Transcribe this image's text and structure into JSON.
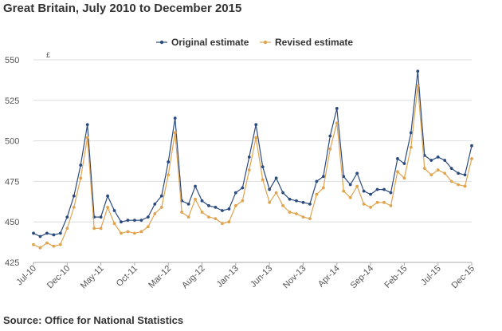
{
  "header": {
    "title": "Great Britain, July 2010 to December 2015"
  },
  "footer": {
    "source": "Source: Office for National Statistics"
  },
  "chart_data": {
    "type": "line",
    "title": "Great Britain, July 2010 to December 2015",
    "ylabel": "£",
    "ylim": [
      425,
      550
    ],
    "yticks": [
      425,
      450,
      475,
      500,
      525,
      550
    ],
    "grid": true,
    "legend": "top-center",
    "x_tick_labels": [
      "Jul-10",
      "Dec-10",
      "May-11",
      "Oct-11",
      "Mar-12",
      "Aug-12",
      "Jan-13",
      "Jun-13",
      "Nov-13",
      "Apr-14",
      "Sep-14",
      "Feb-15",
      "Jul-15",
      "Dec-15"
    ],
    "x": [
      "Jul-10",
      "Aug-10",
      "Sep-10",
      "Oct-10",
      "Nov-10",
      "Dec-10",
      "Jan-11",
      "Feb-11",
      "Mar-11",
      "Apr-11",
      "May-11",
      "Jun-11",
      "Jul-11",
      "Aug-11",
      "Sep-11",
      "Oct-11",
      "Nov-11",
      "Dec-11",
      "Jan-12",
      "Feb-12",
      "Mar-12",
      "Apr-12",
      "May-12",
      "Jun-12",
      "Jul-12",
      "Aug-12",
      "Sep-12",
      "Oct-12",
      "Nov-12",
      "Dec-12",
      "Jan-13",
      "Feb-13",
      "Mar-13",
      "Apr-13",
      "May-13",
      "Jun-13",
      "Jul-13",
      "Aug-13",
      "Sep-13",
      "Oct-13",
      "Nov-13",
      "Dec-13",
      "Jan-14",
      "Feb-14",
      "Mar-14",
      "Apr-14",
      "May-14",
      "Jun-14",
      "Jul-14",
      "Aug-14",
      "Sep-14",
      "Oct-14",
      "Nov-14",
      "Dec-14",
      "Jan-15",
      "Feb-15",
      "Mar-15",
      "Apr-15",
      "May-15",
      "Jun-15",
      "Jul-15",
      "Aug-15",
      "Sep-15",
      "Oct-15",
      "Nov-15",
      "Dec-15"
    ],
    "series": [
      {
        "name": "Original estimate",
        "color": "#2b4a7e",
        "values": [
          443,
          441,
          443,
          442,
          443,
          453,
          466,
          485,
          510,
          453,
          453,
          466,
          457,
          450,
          451,
          451,
          451,
          453,
          461,
          466,
          487,
          514,
          463,
          461,
          472,
          463,
          460,
          459,
          457,
          458,
          468,
          471,
          490,
          510,
          484,
          470,
          477,
          468,
          464,
          463,
          462,
          461,
          475,
          478,
          503,
          520,
          478,
          473,
          480,
          469,
          467,
          470,
          470,
          468,
          489,
          486,
          505,
          543,
          491,
          488,
          490,
          488,
          483,
          480,
          479,
          497
        ]
      },
      {
        "name": "Revised estimate",
        "color": "#e0a34e",
        "values": [
          436,
          434,
          437,
          435,
          436,
          446,
          459,
          477,
          502,
          446,
          446,
          459,
          449,
          443,
          444,
          443,
          444,
          447,
          455,
          459,
          479,
          505,
          456,
          453,
          464,
          456,
          453,
          452,
          449,
          450,
          460,
          463,
          482,
          502,
          476,
          462,
          468,
          460,
          456,
          455,
          453,
          452,
          467,
          471,
          495,
          511,
          469,
          465,
          472,
          461,
          459,
          462,
          462,
          460,
          481,
          477,
          496,
          534,
          483,
          479,
          482,
          480,
          475,
          473,
          472,
          489
        ]
      }
    ]
  }
}
